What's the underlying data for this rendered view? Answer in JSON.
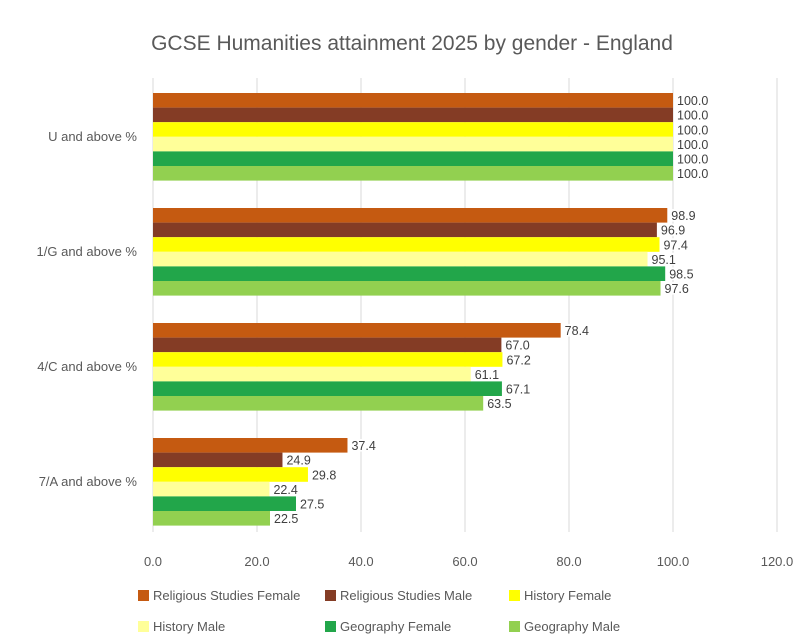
{
  "chart_data": {
    "type": "bar",
    "orientation": "horizontal",
    "title": "GCSE Humanities attainment 2025 by gender - England",
    "categories": [
      "U and above %",
      "1/G and above %",
      "4/C and above %",
      "7/A and above %"
    ],
    "series": [
      {
        "name": "Religious Studies Female",
        "color": "#c55a11",
        "values": [
          100.0,
          98.9,
          78.4,
          37.4
        ]
      },
      {
        "name": "Religious Studies Male",
        "color": "#843c25",
        "values": [
          100.0,
          96.9,
          67.0,
          24.9
        ]
      },
      {
        "name": "History Female",
        "color": "#ffff00",
        "values": [
          100.0,
          97.4,
          67.2,
          29.8
        ]
      },
      {
        "name": "History Male",
        "color": "#ffff99",
        "values": [
          100.0,
          95.1,
          61.1,
          22.4
        ]
      },
      {
        "name": "Geography Female",
        "color": "#22a64a",
        "values": [
          100.0,
          98.5,
          67.1,
          27.5
        ]
      },
      {
        "name": "Geography Male",
        "color": "#92d050",
        "values": [
          100.0,
          97.6,
          63.5,
          22.5
        ]
      }
    ],
    "xlim": [
      0,
      120
    ],
    "xticks": [
      "0.0",
      "20.0",
      "40.0",
      "60.0",
      "80.0",
      "100.0",
      "120.0"
    ],
    "grid": "vertical",
    "legend_position": "bottom"
  }
}
